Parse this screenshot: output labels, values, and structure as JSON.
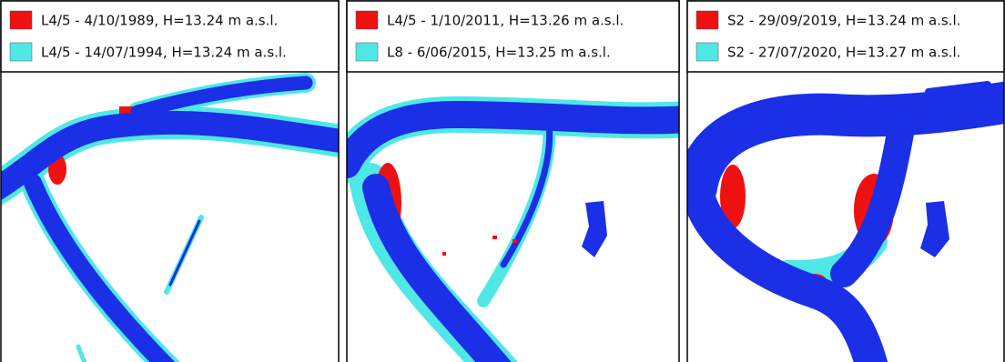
{
  "panels": [
    {
      "legend": [
        {
          "label": "L4/5 - 4/10/1989, H=13.24 m a.s.l.",
          "color": "#ee1111"
        },
        {
          "label": "L4/5 - 14/07/1994, H=13.24 m a.s.l.",
          "color": "#4fe8e6"
        }
      ]
    },
    {
      "legend": [
        {
          "label": "L4/5 - 1/10/2011, H=13.26 m a.s.l.",
          "color": "#ee1111"
        },
        {
          "label": "L8 - 6/06/2015, H=13.25 m a.s.l.",
          "color": "#4fe8e6"
        }
      ]
    },
    {
      "legend": [
        {
          "label": "S2 - 29/09/2019, H=13.24 m a.s.l.",
          "color": "#ee1111"
        },
        {
          "label": "S2 - 27/07/2020, H=13.27 m a.s.l.",
          "color": "#4fe8e6"
        }
      ]
    }
  ]
}
